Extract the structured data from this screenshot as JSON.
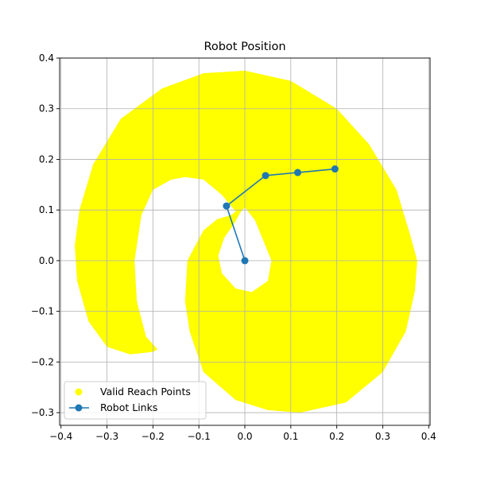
{
  "chart_data": {
    "type": "scatter",
    "title": "Robot Position",
    "xlabel": "",
    "ylabel": "",
    "xlim": [
      -0.403,
      0.403
    ],
    "ylim": [
      -0.325,
      0.4
    ],
    "xticks": [
      -0.4,
      -0.3,
      -0.2,
      -0.1,
      0.0,
      0.1,
      0.2,
      0.3,
      0.4
    ],
    "yticks": [
      -0.3,
      -0.2,
      -0.1,
      0.0,
      0.1,
      0.2,
      0.3,
      0.4
    ],
    "xtick_labels": [
      "−0.4",
      "−0.3",
      "−0.2",
      "−0.1",
      "0.0",
      "0.1",
      "0.2",
      "0.3",
      "0.4"
    ],
    "ytick_labels": [
      "−0.3",
      "−0.2",
      "−0.1",
      "0.0",
      "0.1",
      "0.2",
      "0.3",
      "0.4"
    ],
    "grid": true,
    "legend_position": "lower-left",
    "colors": {
      "reach": "#ffff00",
      "links": "#1f77b4",
      "grid": "#b0b0b0"
    },
    "series": [
      {
        "name": "Valid Reach Points",
        "kind": "filled-region",
        "color": "#ffff00",
        "outer_boundary": [
          [
            0.0,
            0.375
          ],
          [
            0.1,
            0.355
          ],
          [
            0.2,
            0.3
          ],
          [
            0.27,
            0.23
          ],
          [
            0.33,
            0.14
          ],
          [
            0.36,
            0.05
          ],
          [
            0.375,
            0.0
          ],
          [
            0.37,
            -0.06
          ],
          [
            0.35,
            -0.14
          ],
          [
            0.3,
            -0.22
          ],
          [
            0.22,
            -0.28
          ],
          [
            0.12,
            -0.3
          ],
          [
            0.05,
            -0.295
          ],
          [
            -0.02,
            -0.275
          ],
          [
            -0.09,
            -0.22
          ],
          [
            -0.12,
            -0.14
          ],
          [
            -0.13,
            -0.08
          ],
          [
            -0.125,
            0.0
          ],
          [
            -0.09,
            0.06
          ],
          [
            -0.06,
            0.082
          ],
          [
            -0.03,
            0.09
          ],
          [
            -0.02,
            0.097
          ],
          [
            -0.05,
            0.13
          ],
          [
            -0.09,
            0.16
          ],
          [
            -0.13,
            0.165
          ],
          [
            -0.16,
            0.16
          ],
          [
            -0.2,
            0.14
          ],
          [
            -0.225,
            0.09
          ],
          [
            -0.24,
            0.0
          ],
          [
            -0.235,
            -0.08
          ],
          [
            -0.215,
            -0.15
          ],
          [
            -0.19,
            -0.175
          ],
          [
            -0.2,
            -0.18
          ],
          [
            -0.25,
            -0.185
          ],
          [
            -0.3,
            -0.17
          ],
          [
            -0.34,
            -0.12
          ],
          [
            -0.365,
            -0.04
          ],
          [
            -0.37,
            0.03
          ],
          [
            -0.36,
            0.1
          ],
          [
            -0.33,
            0.19
          ],
          [
            -0.27,
            0.28
          ],
          [
            -0.18,
            0.34
          ],
          [
            -0.09,
            0.37
          ],
          [
            0.0,
            0.375
          ]
        ],
        "hole_boundary": [
          [
            0.0,
            0.105
          ],
          [
            0.022,
            0.08
          ],
          [
            0.04,
            0.04
          ],
          [
            0.058,
            0.0
          ],
          [
            0.05,
            -0.04
          ],
          [
            0.015,
            -0.062
          ],
          [
            -0.02,
            -0.055
          ],
          [
            -0.05,
            -0.025
          ],
          [
            -0.058,
            0.01
          ],
          [
            -0.045,
            0.045
          ],
          [
            -0.022,
            0.075
          ],
          [
            -0.01,
            0.095
          ],
          [
            0.0,
            0.105
          ]
        ]
      },
      {
        "name": "Robot Links",
        "kind": "line-markers",
        "color": "#1f77b4",
        "points": [
          [
            0.0,
            0.0
          ],
          [
            -0.04,
            0.108
          ],
          [
            0.045,
            0.168
          ],
          [
            0.115,
            0.174
          ],
          [
            0.196,
            0.181
          ]
        ]
      }
    ]
  }
}
